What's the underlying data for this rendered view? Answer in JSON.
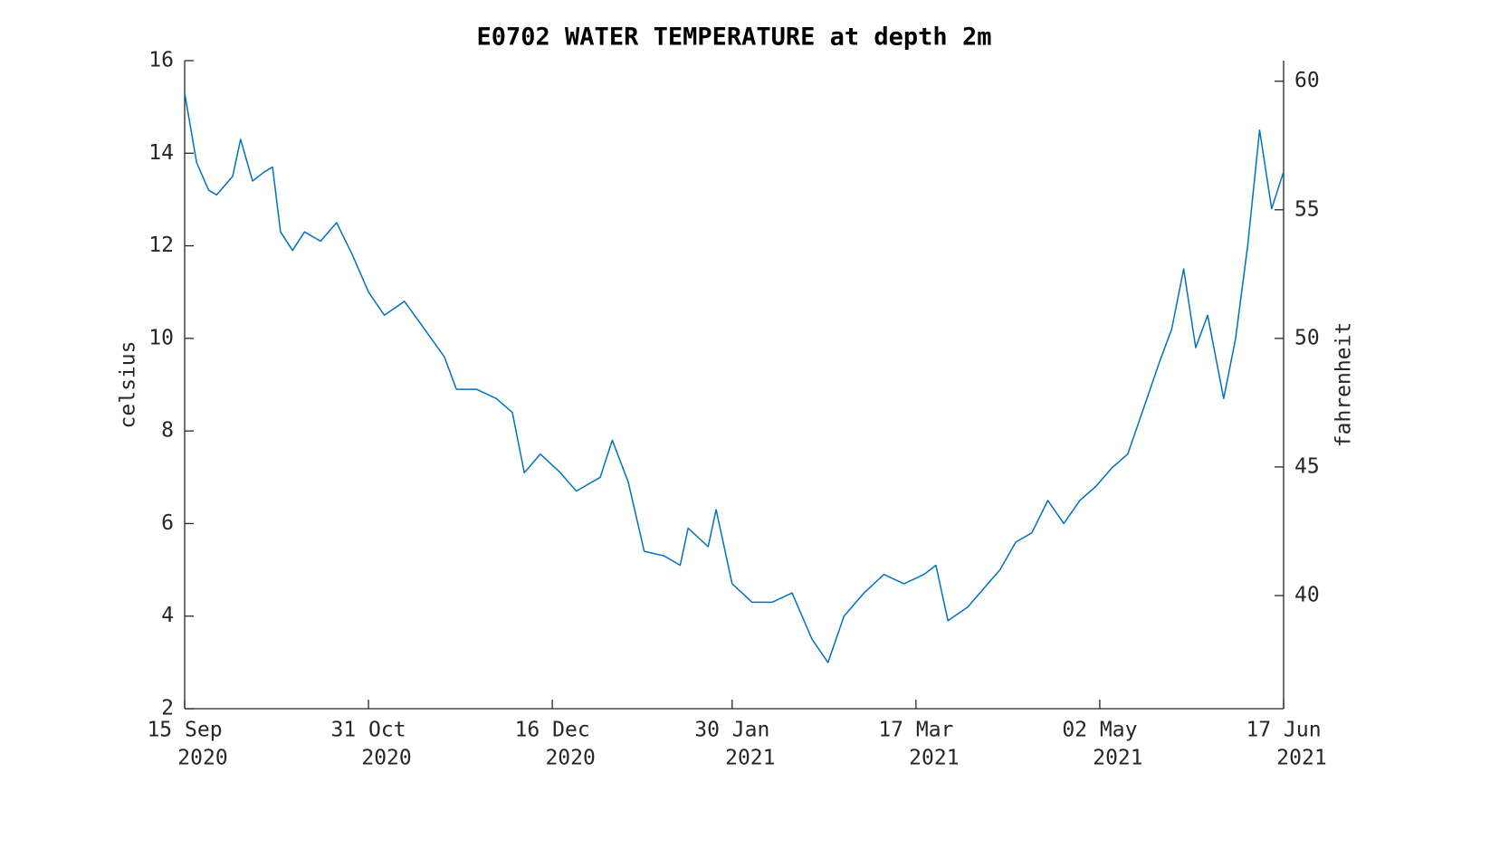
{
  "chart_data": {
    "type": "line",
    "title": "E0702 WATER TEMPERATURE at depth 2m",
    "y_label": "celsius",
    "y2_label": "fahrenheit",
    "x": [
      "2020-09-15",
      "2020-09-18",
      "2020-09-21",
      "2020-09-23",
      "2020-09-27",
      "2020-09-29",
      "2020-10-02",
      "2020-10-05",
      "2020-10-07",
      "2020-10-09",
      "2020-10-12",
      "2020-10-15",
      "2020-10-19",
      "2020-10-23",
      "2020-10-27",
      "2020-10-31",
      "2020-11-04",
      "2020-11-09",
      "2020-11-14",
      "2020-11-19",
      "2020-11-22",
      "2020-11-27",
      "2020-12-02",
      "2020-12-06",
      "2020-12-09",
      "2020-12-13",
      "2020-12-18",
      "2020-12-22",
      "2020-12-28",
      "2020-12-31",
      "2021-01-04",
      "2021-01-08",
      "2021-01-13",
      "2021-01-17",
      "2021-01-19",
      "2021-01-24",
      "2021-01-26",
      "2021-01-30",
      "2021-02-04",
      "2021-02-09",
      "2021-02-14",
      "2021-02-19",
      "2021-02-23",
      "2021-02-27",
      "2021-03-04",
      "2021-03-09",
      "2021-03-14",
      "2021-03-19",
      "2021-03-22",
      "2021-03-25",
      "2021-03-30",
      "2021-04-03",
      "2021-04-07",
      "2021-04-11",
      "2021-04-15",
      "2021-04-19",
      "2021-04-23",
      "2021-04-27",
      "2021-05-01",
      "2021-05-05",
      "2021-05-09",
      "2021-05-13",
      "2021-05-17",
      "2021-05-20",
      "2021-05-23",
      "2021-05-26",
      "2021-05-29",
      "2021-06-02",
      "2021-06-05",
      "2021-06-08",
      "2021-06-11",
      "2021-06-14",
      "2021-06-17"
    ],
    "series": [
      {
        "name": "celsius",
        "color": "#0072bd",
        "values": [
          15.3,
          13.8,
          13.2,
          13.1,
          13.5,
          14.3,
          13.4,
          13.6,
          13.7,
          12.3,
          11.9,
          12.3,
          12.1,
          12.5,
          11.8,
          11.0,
          10.5,
          10.8,
          10.2,
          9.6,
          8.9,
          8.9,
          8.7,
          8.4,
          7.1,
          7.5,
          7.1,
          6.7,
          7.0,
          7.8,
          6.9,
          5.4,
          5.3,
          5.1,
          5.9,
          5.5,
          6.3,
          4.7,
          4.3,
          4.3,
          4.5,
          3.5,
          3.0,
          4.0,
          4.5,
          4.9,
          4.7,
          4.9,
          5.1,
          3.9,
          4.2,
          4.6,
          5.0,
          5.6,
          5.8,
          6.5,
          6.0,
          6.5,
          6.8,
          7.2,
          7.5,
          8.5,
          9.5,
          10.2,
          11.5,
          9.8,
          10.5,
          8.7,
          10.0,
          12.0,
          14.5,
          12.8,
          13.6
        ]
      }
    ],
    "xlim": [
      "2020-09-15",
      "2021-06-17"
    ],
    "xticks": [
      {
        "value": "2020-09-15",
        "label": [
          "15 Sep",
          "2020"
        ]
      },
      {
        "value": "2020-10-31",
        "label": [
          "31 Oct",
          "2020"
        ]
      },
      {
        "value": "2020-12-16",
        "label": [
          "16 Dec",
          "2020"
        ]
      },
      {
        "value": "2021-01-30",
        "label": [
          "30 Jan",
          "2021"
        ]
      },
      {
        "value": "2021-03-17",
        "label": [
          "17 Mar",
          "2021"
        ]
      },
      {
        "value": "2021-05-02",
        "label": [
          "02 May",
          "2021"
        ]
      },
      {
        "value": "2021-06-17",
        "label": [
          "17 Jun",
          "2021"
        ]
      }
    ],
    "ylim": [
      2,
      16
    ],
    "yticks": [
      2,
      4,
      6,
      8,
      10,
      12,
      14,
      16
    ],
    "y2lim": [
      35.6,
      60.8
    ],
    "y2ticks": [
      40,
      45,
      50,
      55,
      60
    ]
  }
}
